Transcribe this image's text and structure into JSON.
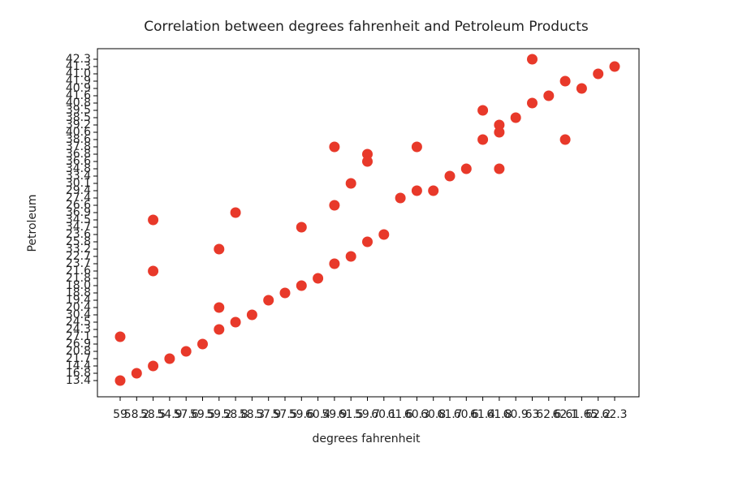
{
  "chart_data": {
    "type": "scatter",
    "title": "Correlation between degrees fahrenheit and Petroleum Products",
    "xlabel": "degrees fahrenheit",
    "ylabel": "Petroleum",
    "color": "#e8392a",
    "xcategories": [
      "59",
      "58.2",
      "58.5",
      "54.9",
      "57.6",
      "59.5",
      "59.2",
      "58.8",
      "58.3",
      "57.9",
      "57.5",
      "59.6",
      "60.4",
      "59.9",
      "61.5",
      "59.7",
      "60.1",
      "61.6",
      "60.3",
      "60.8",
      "61.7",
      "60.6",
      "61.4",
      "61.8",
      "60.9",
      "63",
      "62.6",
      "62.1",
      "61.65",
      "62.2",
      "62.3"
    ],
    "ycategories": [
      "13.4",
      "16.8",
      "14.4",
      "21.7",
      "20.8",
      "26.9",
      "27.1",
      "24.3",
      "24.5",
      "30.4",
      "20.4",
      "19.4",
      "18.8",
      "18.0",
      "21.8",
      "21.6",
      "23.7",
      "22.7",
      "33.2",
      "25.8",
      "23.6",
      "34.7",
      "34.5",
      "36.9",
      "26.6",
      "27.4",
      "29.4",
      "30.1",
      "33.4",
      "34.8",
      "36.6",
      "36.8",
      "37.8",
      "38.6",
      "40.6",
      "39.2",
      "38.5",
      "39.5",
      "40.8",
      "41.6",
      "40.9",
      "41.9",
      "41.0",
      "41.3",
      "42.3"
    ],
    "x": [
      "59",
      "58.2",
      "58.5",
      "54.9",
      "57.6",
      "59.5",
      "59.2",
      "58.8",
      "58.3",
      "57.9",
      "57.5",
      "59.6",
      "60.4",
      "59.9",
      "61.5",
      "59.7",
      "60.1",
      "61.6",
      "60.3",
      "60.8",
      "61.7",
      "60.6",
      "61.4",
      "61.8",
      "60.9",
      "63",
      "62.6",
      "62.1",
      "61.65",
      "62.2",
      "62.3",
      "59",
      "58.5",
      "58.5",
      "59.2",
      "59.2",
      "58.8",
      "59.6",
      "59.9",
      "59.9",
      "61.5",
      "59.7",
      "59.7",
      "60.3",
      "61.4",
      "61.8",
      "61.8",
      "63",
      "62.1"
    ],
    "y": [
      "13.4",
      "16.8",
      "14.4",
      "21.7",
      "20.8",
      "26.9",
      "24.3",
      "24.5",
      "30.4",
      "19.4",
      "18.8",
      "18.0",
      "21.8",
      "23.7",
      "22.7",
      "25.8",
      "23.6",
      "27.4",
      "29.4",
      "29.4",
      "33.4",
      "34.8",
      "38.6",
      "39.2",
      "38.5",
      "40.8",
      "41.6",
      "41.9",
      "40.9",
      "41.0",
      "41.3",
      "27.1",
      "34.5",
      "21.6",
      "33.2",
      "20.4",
      "36.9",
      "34.7",
      "37.8",
      "26.6",
      "30.1",
      "36.8",
      "36.6",
      "37.8",
      "39.5",
      "40.6",
      "34.8",
      "42.3",
      "38.6"
    ]
  }
}
